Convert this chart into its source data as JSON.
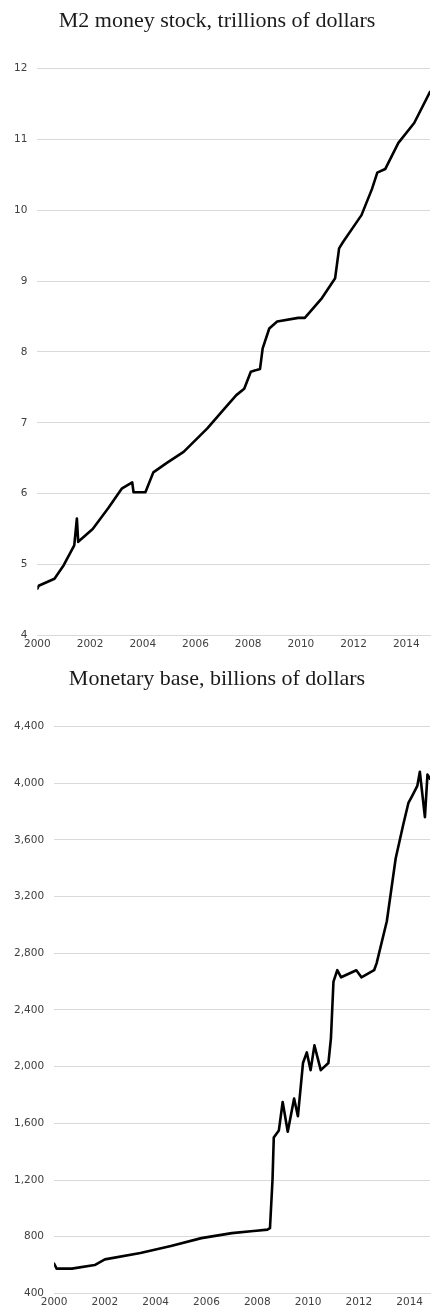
{
  "chart_data": [
    {
      "type": "line",
      "title": "Monetary base, billions of dollars",
      "x": [
        2000.0,
        2000.1,
        2000.7,
        2001.6,
        2002.0,
        2003.4,
        2004.6,
        2005.8,
        2007.0,
        2008.4,
        2008.5,
        2008.6,
        2008.65,
        2008.85,
        2009.0,
        2009.2,
        2009.45,
        2009.6,
        2009.8,
        2009.95,
        2010.1,
        2010.25,
        2010.5,
        2010.8,
        2010.9,
        2011.0,
        2011.15,
        2011.3,
        2011.9,
        2012.1,
        2012.6,
        2012.7,
        2013.1,
        2013.45,
        2013.75,
        2013.95,
        2014.1,
        2014.3,
        2014.4,
        2014.6,
        2014.7,
        2014.8
      ],
      "series": [
        {
          "color": "#000000",
          "values": [
            610,
            575,
            575,
            600,
            640,
            685,
            735,
            790,
            825,
            850,
            860,
            1200,
            1500,
            1550,
            1750,
            1540,
            1775,
            1650,
            2025,
            2100,
            1975,
            2150,
            1975,
            2025,
            2200,
            2600,
            2680,
            2630,
            2680,
            2630,
            2680,
            2730,
            3025,
            3470,
            3710,
            3860,
            3910,
            3980,
            4080,
            3760,
            4060,
            4030
          ]
        }
      ],
      "xlim": [
        2000,
        2014.8
      ],
      "xticks": [
        2000,
        2002,
        2004,
        2006,
        2008,
        2010,
        2012,
        2014
      ],
      "ylim": [
        400,
        4400
      ],
      "yticks": [
        400,
        {
          "value": 800,
          "label": "800"
        },
        {
          "value": 1200,
          "label": "1,200"
        },
        {
          "value": 1600,
          "label": "1,600"
        },
        {
          "value": 2000,
          "label": "2,000"
        },
        {
          "value": 2400,
          "label": "2,400"
        },
        {
          "value": 2800,
          "label": "2,800"
        },
        {
          "value": 3200,
          "label": "3,200"
        },
        {
          "value": 3600,
          "label": "3,600"
        },
        {
          "value": 4000,
          "label": "4,000"
        },
        {
          "value": 4400,
          "label": "4,400"
        }
      ],
      "grid": "y"
    },
    {
      "type": "line",
      "title": "M2 money stock, trillions of dollars",
      "x": [
        2000.0,
        2000.05,
        2000.65,
        2001.0,
        2001.4,
        2001.5,
        2001.55,
        2002.1,
        2002.7,
        2003.2,
        2003.6,
        2003.65,
        2004.1,
        2004.4,
        2004.9,
        2005.55,
        2006.45,
        2007.1,
        2007.55,
        2007.85,
        2008.1,
        2008.45,
        2008.55,
        2008.8,
        2009.1,
        2009.9,
        2010.15,
        2010.8,
        2011.3,
        2011.45,
        2011.6,
        2012.3,
        2012.7,
        2012.9,
        2013.2,
        2013.7,
        2014.3,
        2014.9
      ],
      "series": [
        {
          "color": "#000000",
          "values": [
            4.66,
            4.7,
            4.8,
            4.99,
            5.27,
            5.65,
            5.32,
            5.5,
            5.8,
            6.07,
            6.16,
            6.02,
            6.02,
            6.3,
            6.43,
            6.59,
            6.92,
            7.2,
            7.39,
            7.48,
            7.72,
            7.76,
            8.05,
            8.33,
            8.43,
            8.48,
            8.48,
            8.76,
            9.04,
            9.46,
            9.55,
            9.93,
            10.3,
            10.53,
            10.58,
            10.95,
            11.23,
            11.67
          ]
        }
      ],
      "xlim": [
        2000,
        2014.9
      ],
      "xticks": [
        2000,
        2002,
        2004,
        2006,
        2008,
        2010,
        2012,
        2014
      ],
      "ylim": [
        4,
        12
      ],
      "yticks": [
        4,
        5,
        6,
        7,
        8,
        9,
        10,
        11,
        12
      ],
      "grid": "y"
    }
  ]
}
